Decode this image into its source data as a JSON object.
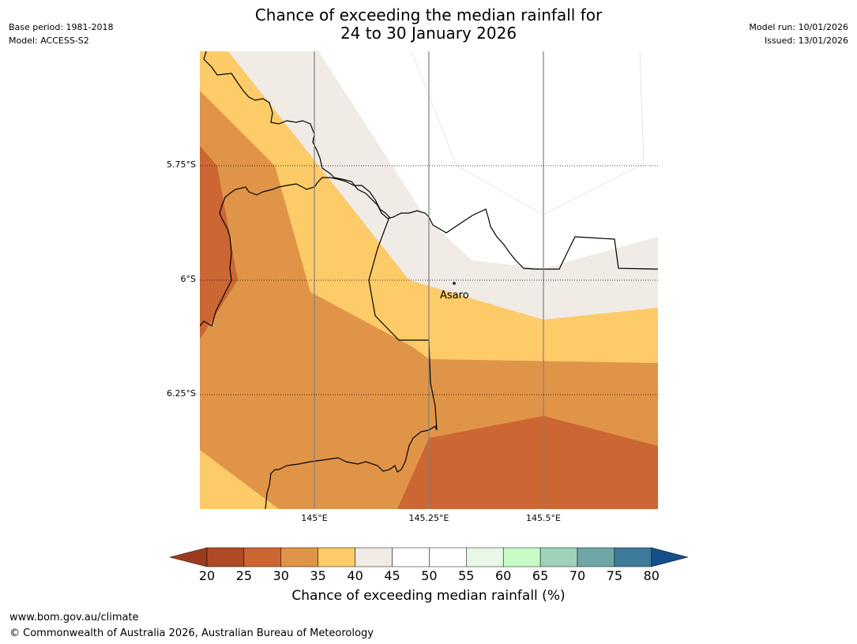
{
  "title_line1": "Chance of exceeding the median rainfall for",
  "title_line2": "24 to 30 January 2026",
  "meta": {
    "base_period": "Base period: 1981-2018",
    "model": "Model: ACCESS-S2",
    "model_run": "Model run: 10/01/2026",
    "issued": "Issued: 13/01/2026"
  },
  "map": {
    "lat_labels": [
      "5.75°S",
      "6°S",
      "6.25°S"
    ],
    "lon_labels": [
      "145°E",
      "145.25°E",
      "145.5°E"
    ],
    "place": "Asaro"
  },
  "colorbar": {
    "ticks": [
      "20",
      "25",
      "30",
      "35",
      "40",
      "45",
      "50",
      "55",
      "60",
      "65",
      "70",
      "75",
      "80"
    ],
    "colors": [
      "#b04a26",
      "#cc6633",
      "#e09448",
      "#fdcb68",
      "#f0ebe5",
      "#ffffff",
      "#ffffff",
      "#e8f7e8",
      "#c7fcc7",
      "#9ed1ba",
      "#6fa5a5",
      "#3e7a99"
    ],
    "under_color": "#9c3b20",
    "over_color": "#134f8b",
    "label": "Chance of exceeding median rainfall (%)"
  },
  "footer": {
    "url": "www.bom.gov.au/climate",
    "copyright": "© Commonwealth of Australia 2026, Australian Bureau of Meteorology"
  }
}
